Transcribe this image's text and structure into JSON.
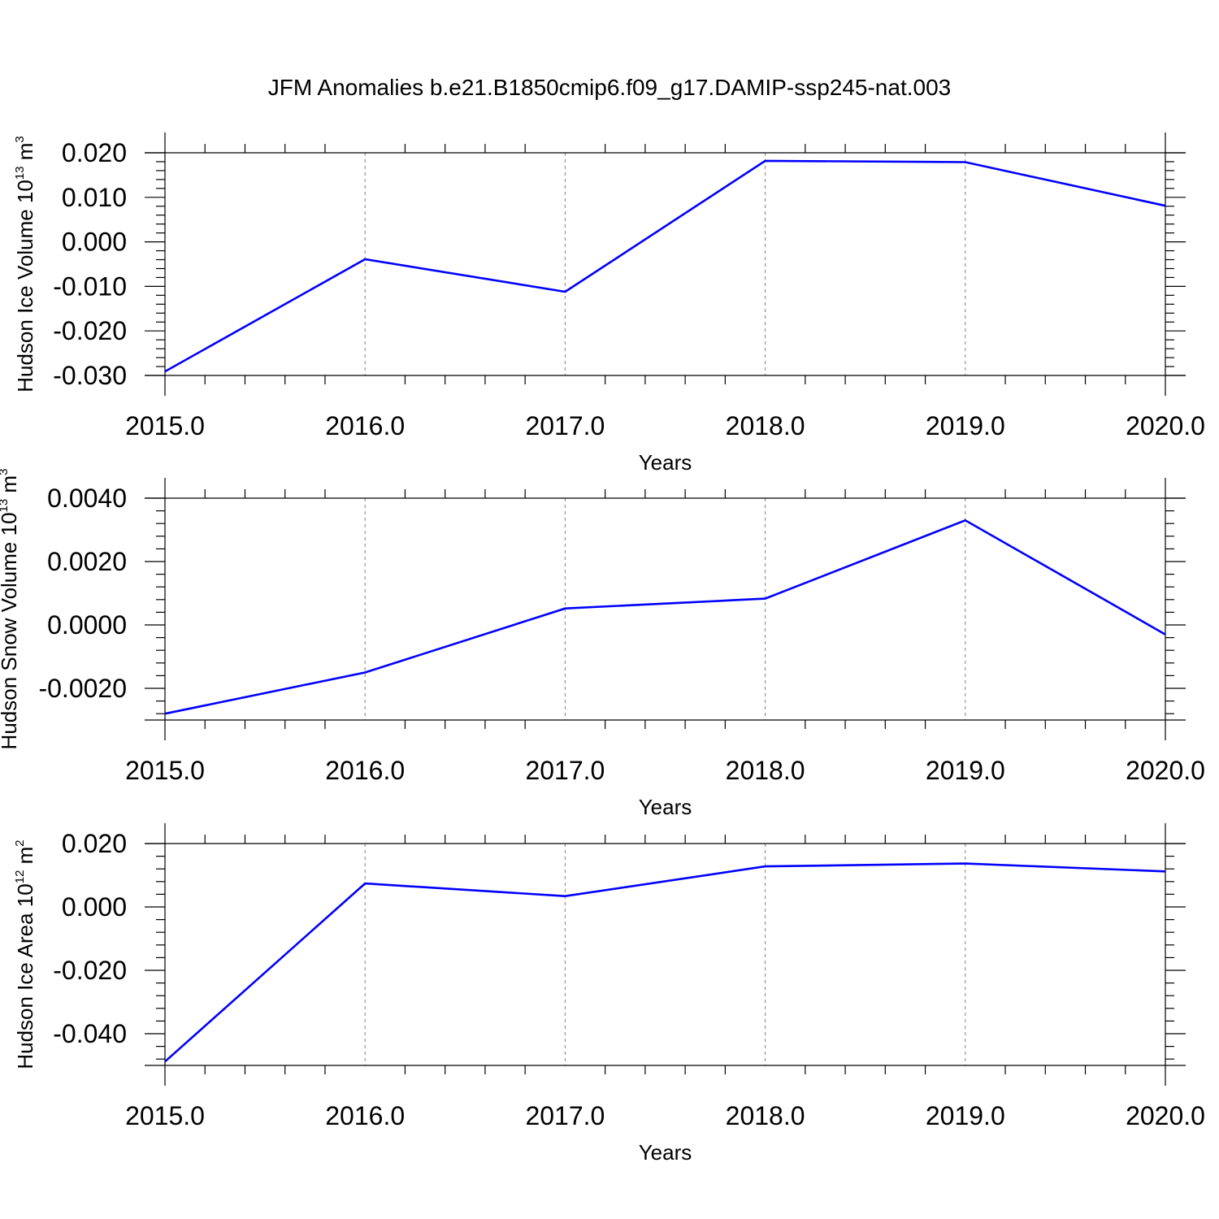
{
  "title": "JFM Anomalies b.e21.B1850cmip6.f09_g17.DAMIP-ssp245-nat.003",
  "colors": {
    "line": "#0000ff",
    "axis": "#000000",
    "grid": "#808080"
  },
  "chart_data": [
    {
      "type": "line",
      "ylabel": {
        "main": "Hudson Ice Volume 10",
        "exp": "13",
        "unit": " m",
        "unit_exp": "3"
      },
      "xlabel": "Years",
      "xlim": [
        2015,
        2020
      ],
      "ylim": [
        -0.03,
        0.02
      ],
      "x_ticks": [
        2015,
        2016,
        2017,
        2018,
        2019,
        2020
      ],
      "x_tick_labels": [
        "2015.0",
        "2016.0",
        "2017.0",
        "2018.0",
        "2019.0",
        "2020.0"
      ],
      "y_ticks": [
        -0.03,
        -0.02,
        -0.01,
        0.0,
        0.01,
        0.02
      ],
      "y_tick_labels": [
        "-0.030",
        "-0.020",
        "-0.010",
        "0.000",
        "0.010",
        "0.020"
      ],
      "x_minor_step": 0.2,
      "y_minor_step": 0.002,
      "grid": "vertical dashed",
      "x": [
        2015,
        2016,
        2017,
        2018,
        2019,
        2020
      ],
      "y": [
        -0.0291,
        -0.0039,
        -0.0112,
        0.0182,
        0.0179,
        0.0081
      ]
    },
    {
      "type": "line",
      "ylabel": {
        "main": "Hudson Snow Volume 10",
        "exp": "13",
        "unit": " m",
        "unit_exp": "3"
      },
      "xlabel": "Years",
      "xlim": [
        2015,
        2020
      ],
      "ylim": [
        -0.003,
        0.004
      ],
      "x_ticks": [
        2015,
        2016,
        2017,
        2018,
        2019,
        2020
      ],
      "x_tick_labels": [
        "2015.0",
        "2016.0",
        "2017.0",
        "2018.0",
        "2019.0",
        "2020.0"
      ],
      "y_ticks": [
        -0.002,
        0.0,
        0.002,
        0.004
      ],
      "y_tick_labels": [
        "-0.0020",
        "0.0000",
        "0.0020",
        "0.0040"
      ],
      "x_minor_step": 0.2,
      "y_minor_step": 0.0004,
      "grid": "vertical dashed",
      "x": [
        2015,
        2016,
        2017,
        2018,
        2019,
        2020
      ],
      "y": [
        -0.0028,
        -0.0015,
        0.00052,
        0.00083,
        0.0033,
        -0.0003
      ]
    },
    {
      "type": "line",
      "ylabel": {
        "main": "Hudson Ice Area 10",
        "exp": "12",
        "unit": " m",
        "unit_exp": "2"
      },
      "xlabel": "Years",
      "xlim": [
        2015,
        2020
      ],
      "ylim": [
        -0.05,
        0.02
      ],
      "x_ticks": [
        2015,
        2016,
        2017,
        2018,
        2019,
        2020
      ],
      "x_tick_labels": [
        "2015.0",
        "2016.0",
        "2017.0",
        "2018.0",
        "2019.0",
        "2020.0"
      ],
      "y_ticks": [
        -0.04,
        -0.02,
        0.0,
        0.02
      ],
      "y_tick_labels": [
        "-0.040",
        "-0.020",
        "0.000",
        "0.020"
      ],
      "x_minor_step": 0.2,
      "y_minor_step": 0.004,
      "grid": "vertical dashed",
      "x": [
        2015,
        2016,
        2017,
        2018,
        2019,
        2020
      ],
      "y": [
        -0.0488,
        0.0074,
        0.0034,
        0.0128,
        0.0137,
        0.0112
      ]
    }
  ]
}
